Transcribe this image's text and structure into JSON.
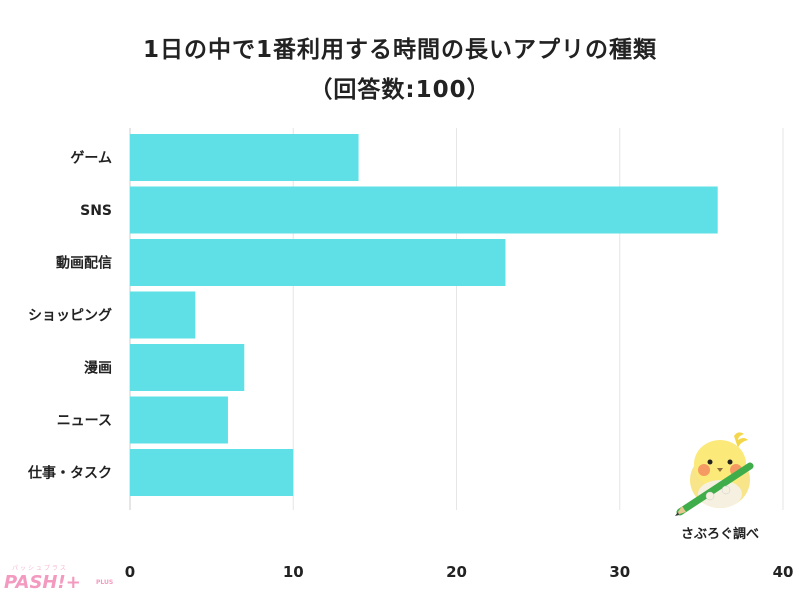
{
  "title_line1": "1日の中で1番利用する時間の長いアプリの種類",
  "title_line2": "（回答数:100）",
  "credit": "さぶろぐ調べ",
  "logo": {
    "text": "PASH!+",
    "small": "パッシュプラス",
    "plus": "PLUS"
  },
  "colors": {
    "bar": "#5ee0e6",
    "grid": "#e6e6e6",
    "axis": "#cccccc",
    "text": "#222222",
    "logo": "#f39ac0"
  },
  "chart_data": {
    "type": "bar",
    "orientation": "horizontal",
    "categories": [
      "ゲーム",
      "SNS",
      "動画配信",
      "ショッピング",
      "漫画",
      "ニュース",
      "仕事・タスク"
    ],
    "values": [
      14,
      36,
      23,
      4,
      7,
      6,
      10
    ],
    "xlim": [
      0,
      40
    ],
    "ticks": [
      0,
      10,
      20,
      30,
      40
    ],
    "grid": true
  }
}
